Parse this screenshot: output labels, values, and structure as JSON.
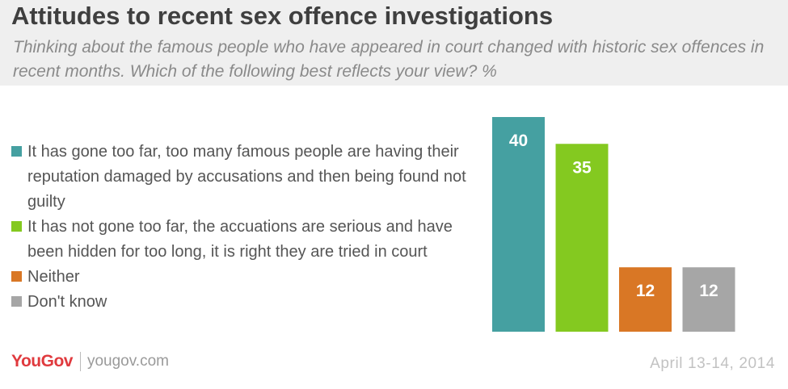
{
  "title": "Attitudes to recent sex offence investigations",
  "subtitle": "Thinking about the famous people who have appeared in court changed with historic sex offences in recent months. Which of the following best reflects your view? %",
  "chart_data": {
    "type": "bar",
    "categories": [
      "It has gone too far, too many famous people are having their reputation damaged by accusations and then being found not guilty",
      "It has not gone too far, the accuations are serious and have been hidden for too long, it is right they are tried in court",
      "Neither",
      "Don't know"
    ],
    "values": [
      40,
      35,
      12,
      12
    ],
    "colors": [
      "#45a0a1",
      "#84c920",
      "#d97725",
      "#a6a6a6"
    ],
    "ylim": [
      0,
      40
    ],
    "grid": false,
    "legend": "left",
    "unit": "%"
  },
  "footer": {
    "brand_you": "You",
    "brand_gov": "Gov",
    "url": "yougov.com",
    "date": "April 13-14, 2014"
  }
}
